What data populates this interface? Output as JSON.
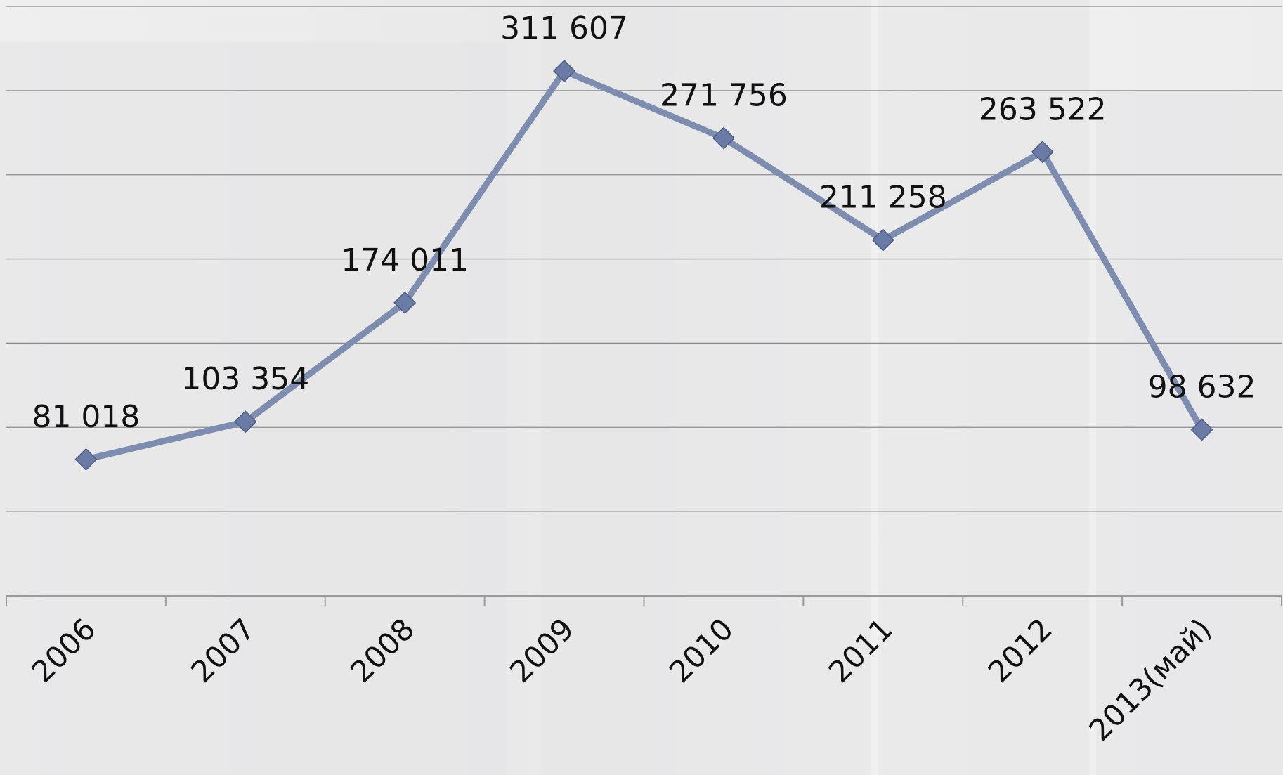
{
  "chart_data": {
    "type": "line",
    "categories": [
      "2006",
      "2007",
      "2008",
      "2009",
      "2010",
      "2011",
      "2012",
      "2013(май)"
    ],
    "values": [
      81018,
      103354,
      174011,
      311607,
      271756,
      211258,
      263522,
      98632
    ],
    "value_labels": [
      "81 018",
      "103 354",
      "174 011",
      "311 607",
      "271 756",
      "211 258",
      "263 522",
      "98 632"
    ],
    "color": "#7d8db0",
    "marker_color": "#6a7ba6",
    "ylim": [
      0,
      350000
    ],
    "yticks": [
      0,
      50000,
      100000,
      150000,
      200000,
      250000,
      300000,
      350000
    ],
    "grid": true
  }
}
